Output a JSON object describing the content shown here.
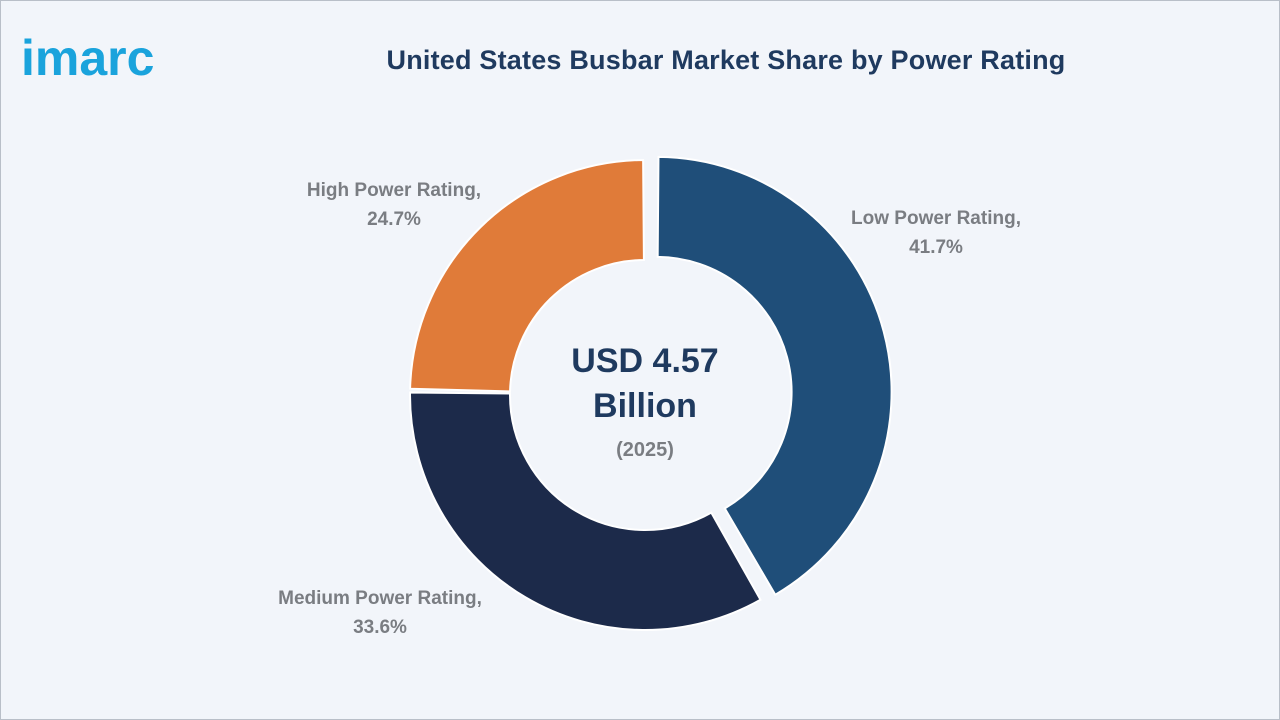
{
  "brand": {
    "logo_text": "imarc",
    "logo_color": "#1aa3dc"
  },
  "chart_data": {
    "type": "pie",
    "title": "United States Busbar Market Share by Power Rating",
    "center_value": [
      "USD 4.57",
      "Billion"
    ],
    "center_sub": "(2025)",
    "slices": [
      {
        "label": "Low Power Rating,",
        "value_label": "41.7%",
        "value": 41.7,
        "color": "#1f4e79"
      },
      {
        "label": "Medium Power Rating,",
        "value_label": "33.6%",
        "value": 33.6,
        "color": "#1c2a4a"
      },
      {
        "label": "High Power Rating,",
        "value_label": "24.7%",
        "value": 24.7,
        "color": "#e07b39"
      }
    ]
  }
}
